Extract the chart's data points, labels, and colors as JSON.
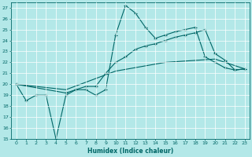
{
  "xlabel": "Humidex (Indice chaleur)",
  "bg_color": "#b3e8e8",
  "line_color": "#006666",
  "xlim": [
    -0.5,
    23.5
  ],
  "ylim": [
    15,
    27.5
  ],
  "yticks": [
    15,
    16,
    17,
    18,
    19,
    20,
    21,
    22,
    23,
    24,
    25,
    26,
    27
  ],
  "xticks": [
    0,
    1,
    2,
    3,
    4,
    5,
    6,
    7,
    8,
    9,
    10,
    11,
    12,
    13,
    14,
    15,
    16,
    17,
    18,
    19,
    20,
    21,
    22,
    23
  ],
  "line1_x": [
    0,
    1,
    2,
    3,
    4,
    5,
    6,
    7,
    8,
    9,
    10,
    11,
    12,
    13,
    14,
    15,
    16,
    17,
    18,
    19,
    20,
    21,
    22,
    23
  ],
  "line1_y": [
    20.0,
    18.5,
    19.0,
    19.0,
    15.0,
    19.0,
    19.5,
    19.5,
    19.0,
    19.5,
    24.5,
    27.2,
    26.5,
    25.2,
    24.2,
    24.5,
    24.8,
    25.0,
    25.2,
    22.5,
    22.0,
    21.5,
    21.3,
    21.4
  ],
  "line2_x": [
    0,
    5,
    6,
    7,
    8,
    9,
    10,
    11,
    12,
    13,
    14,
    15,
    16,
    17,
    18,
    19,
    20,
    21,
    22,
    23
  ],
  "line2_y": [
    20.0,
    19.2,
    19.5,
    19.8,
    19.8,
    21.0,
    22.0,
    22.5,
    23.2,
    23.5,
    23.7,
    24.0,
    24.3,
    24.5,
    24.7,
    25.0,
    22.8,
    22.2,
    21.3,
    21.4
  ],
  "line3_x": [
    0,
    5,
    10,
    15,
    20,
    23
  ],
  "line3_y": [
    20.0,
    19.5,
    21.2,
    22.0,
    22.3,
    21.4
  ]
}
